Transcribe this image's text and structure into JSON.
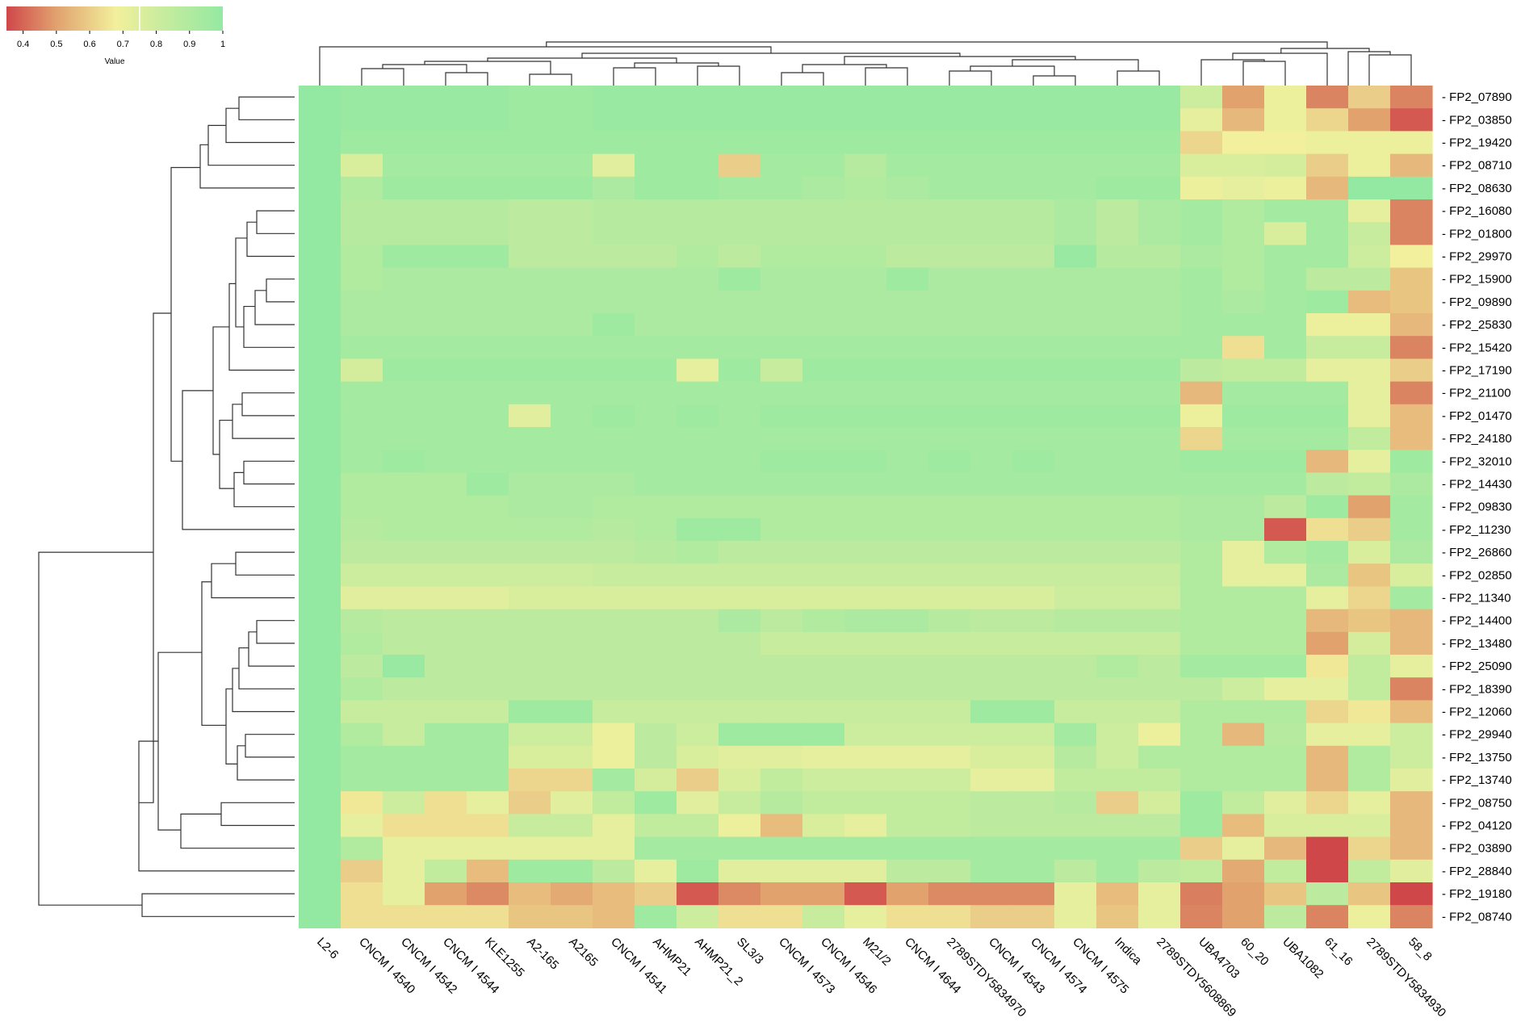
{
  "chart_data": {
    "type": "heatmap",
    "title": "",
    "colorbar": {
      "label": "Value",
      "ticks": [
        "0.4",
        "0.5",
        "0.6",
        "0.7",
        "0.8",
        "0.9",
        "1"
      ],
      "range": [
        0.35,
        1.0
      ],
      "stops": [
        {
          "v": 0.35,
          "color": "#d0474a"
        },
        {
          "v": 0.5,
          "color": "#e1a26e"
        },
        {
          "v": 0.68,
          "color": "#f2f09c"
        },
        {
          "v": 0.82,
          "color": "#c7ec9e"
        },
        {
          "v": 1.0,
          "color": "#94e9a2"
        }
      ]
    },
    "columns": [
      "L2-6",
      "CNCM I 4540",
      "CNCM I 4542",
      "CNCM I 4544",
      "KLE1255",
      "A2-165",
      "A2165",
      "CNCM I 4541",
      "AHMP21",
      "AHMP21_2",
      "SL3/3",
      "CNCM I 4573",
      "CNCM I 4546",
      "M21/2",
      "CNCM I 4644",
      "2789STDY5834970",
      "CNCM I 4543",
      "CNCM I 4574",
      "CNCM I 4575",
      "Indica",
      "2789STDY5608869",
      "UBA4703",
      "60_20",
      "UBA1082",
      "61_16",
      "2789STDY5834930",
      "58_8"
    ],
    "rows": [
      "FP2_07890",
      "FP2_03850",
      "FP2_19420",
      "FP2_08710",
      "FP2_08630",
      "FP2_16080",
      "FP2_01800",
      "FP2_29970",
      "FP2_15900",
      "FP2_09890",
      "FP2_25830",
      "FP2_15420",
      "FP2_17190",
      "FP2_21100",
      "FP2_01470",
      "FP2_24180",
      "FP2_32010",
      "FP2_14430",
      "FP2_09830",
      "FP2_11230",
      "FP2_26860",
      "FP2_02850",
      "FP2_11340",
      "FP2_14400",
      "FP2_13480",
      "FP2_25090",
      "FP2_18390",
      "FP2_12060",
      "FP2_29940",
      "FP2_13750",
      "FP2_13740",
      "FP2_08750",
      "FP2_04120",
      "FP2_03890",
      "FP2_28840",
      "FP2_19180",
      "FP2_08740"
    ],
    "values": [
      [
        1,
        0.98,
        0.98,
        0.98,
        0.98,
        0.96,
        0.96,
        0.98,
        0.98,
        0.98,
        0.98,
        0.98,
        0.98,
        0.98,
        0.98,
        0.98,
        0.98,
        0.98,
        0.98,
        0.98,
        0.98,
        0.8,
        0.5,
        0.7,
        0.45,
        0.6,
        0.45
      ],
      [
        1,
        0.98,
        0.98,
        0.98,
        0.98,
        0.96,
        0.96,
        0.98,
        0.98,
        0.98,
        0.98,
        0.98,
        0.98,
        0.98,
        0.98,
        0.98,
        0.98,
        0.98,
        0.98,
        0.98,
        0.98,
        0.72,
        0.55,
        0.7,
        0.62,
        0.5,
        0.38
      ],
      [
        1,
        0.96,
        0.96,
        0.96,
        0.96,
        0.96,
        0.96,
        0.96,
        0.96,
        0.96,
        0.96,
        0.96,
        0.96,
        0.96,
        0.96,
        0.96,
        0.96,
        0.96,
        0.96,
        0.96,
        0.96,
        0.62,
        0.68,
        0.68,
        0.7,
        0.7,
        0.7
      ],
      [
        1,
        0.76,
        0.94,
        0.94,
        0.94,
        0.94,
        0.94,
        0.74,
        0.96,
        0.96,
        0.6,
        0.94,
        0.94,
        0.88,
        0.94,
        0.94,
        0.94,
        0.94,
        0.94,
        0.94,
        0.94,
        0.76,
        0.76,
        0.78,
        0.6,
        0.7,
        0.55
      ],
      [
        1,
        0.9,
        0.96,
        0.96,
        0.96,
        0.96,
        0.96,
        0.92,
        0.96,
        0.96,
        0.94,
        0.94,
        0.92,
        0.9,
        0.92,
        0.94,
        0.94,
        0.94,
        0.94,
        0.96,
        0.96,
        0.7,
        0.72,
        0.7,
        0.55,
        1,
        1
      ],
      [
        1,
        0.88,
        0.88,
        0.88,
        0.88,
        0.86,
        0.86,
        0.88,
        0.88,
        0.88,
        0.88,
        0.88,
        0.88,
        0.88,
        0.88,
        0.88,
        0.88,
        0.88,
        0.92,
        0.86,
        0.92,
        0.94,
        0.9,
        0.94,
        0.94,
        0.72,
        0.45
      ],
      [
        1,
        0.88,
        0.88,
        0.88,
        0.88,
        0.86,
        0.86,
        0.88,
        0.88,
        0.88,
        0.88,
        0.88,
        0.88,
        0.88,
        0.88,
        0.88,
        0.88,
        0.88,
        0.92,
        0.86,
        0.92,
        0.94,
        0.9,
        0.76,
        0.94,
        0.82,
        0.45
      ],
      [
        1,
        0.9,
        0.96,
        0.96,
        0.96,
        0.86,
        0.86,
        0.86,
        0.86,
        0.9,
        0.86,
        0.9,
        0.9,
        0.9,
        0.86,
        0.86,
        0.86,
        0.86,
        0.98,
        0.88,
        0.88,
        0.92,
        0.9,
        0.94,
        0.94,
        0.8,
        0.68
      ],
      [
        1,
        0.9,
        0.92,
        0.92,
        0.92,
        0.92,
        0.92,
        0.92,
        0.92,
        0.92,
        0.96,
        0.92,
        0.92,
        0.92,
        0.96,
        0.92,
        0.92,
        0.92,
        0.92,
        0.92,
        0.92,
        0.94,
        0.9,
        0.94,
        0.86,
        0.86,
        0.58
      ],
      [
        1,
        0.92,
        0.92,
        0.92,
        0.92,
        0.92,
        0.92,
        0.92,
        0.92,
        0.92,
        0.92,
        0.92,
        0.92,
        0.92,
        0.92,
        0.92,
        0.92,
        0.92,
        0.92,
        0.92,
        0.92,
        0.94,
        0.92,
        0.94,
        0.96,
        0.56,
        0.58
      ],
      [
        1,
        0.92,
        0.92,
        0.92,
        0.92,
        0.92,
        0.92,
        0.96,
        0.92,
        0.92,
        0.92,
        0.92,
        0.92,
        0.92,
        0.92,
        0.92,
        0.92,
        0.92,
        0.92,
        0.92,
        0.92,
        0.94,
        0.94,
        0.94,
        0.7,
        0.7,
        0.55
      ],
      [
        1,
        0.94,
        0.94,
        0.94,
        0.94,
        0.94,
        0.94,
        0.94,
        0.94,
        0.94,
        0.94,
        0.94,
        0.94,
        0.94,
        0.94,
        0.94,
        0.94,
        0.94,
        0.94,
        0.94,
        0.94,
        0.94,
        0.64,
        0.94,
        0.82,
        0.82,
        0.45
      ],
      [
        1,
        0.78,
        0.96,
        0.96,
        0.96,
        0.96,
        0.96,
        0.96,
        0.96,
        0.72,
        0.96,
        0.82,
        0.96,
        0.96,
        0.96,
        0.96,
        0.96,
        0.96,
        0.96,
        0.96,
        0.96,
        0.86,
        0.84,
        0.84,
        0.72,
        0.72,
        0.6
      ],
      [
        1,
        0.94,
        0.94,
        0.94,
        0.94,
        0.94,
        0.94,
        0.94,
        0.94,
        0.94,
        0.94,
        0.94,
        0.94,
        0.94,
        0.94,
        0.94,
        0.94,
        0.94,
        0.94,
        0.94,
        0.94,
        0.55,
        0.94,
        0.94,
        0.94,
        0.72,
        0.45
      ],
      [
        1,
        0.94,
        0.94,
        0.94,
        0.94,
        0.74,
        0.94,
        0.96,
        0.94,
        0.96,
        0.94,
        0.96,
        0.96,
        0.96,
        0.96,
        0.96,
        0.96,
        0.96,
        0.96,
        0.96,
        0.96,
        0.7,
        0.96,
        0.96,
        0.96,
        0.72,
        0.56
      ],
      [
        1,
        0.94,
        0.94,
        0.94,
        0.94,
        0.94,
        0.94,
        0.94,
        0.94,
        0.94,
        0.94,
        0.94,
        0.94,
        0.94,
        0.94,
        0.94,
        0.94,
        0.94,
        0.94,
        0.94,
        0.94,
        0.62,
        0.94,
        0.94,
        0.94,
        0.84,
        0.56
      ],
      [
        1,
        0.94,
        0.96,
        0.94,
        0.94,
        0.94,
        0.94,
        0.94,
        0.94,
        0.94,
        0.94,
        0.96,
        0.96,
        0.96,
        0.94,
        0.96,
        0.94,
        0.96,
        0.94,
        0.94,
        0.94,
        0.96,
        0.96,
        0.96,
        0.55,
        0.72,
        0.96
      ],
      [
        1,
        0.9,
        0.9,
        0.9,
        0.96,
        0.92,
        0.92,
        0.92,
        0.94,
        0.94,
        0.94,
        0.94,
        0.94,
        0.94,
        0.94,
        0.94,
        0.94,
        0.94,
        0.94,
        0.94,
        0.94,
        0.94,
        0.94,
        0.94,
        0.86,
        0.84,
        0.92
      ],
      [
        1,
        0.9,
        0.9,
        0.9,
        0.9,
        0.92,
        0.92,
        0.9,
        0.9,
        0.9,
        0.9,
        0.9,
        0.9,
        0.9,
        0.9,
        0.9,
        0.9,
        0.9,
        0.9,
        0.9,
        0.9,
        0.92,
        0.92,
        0.86,
        0.96,
        0.5,
        0.94
      ],
      [
        1,
        0.88,
        0.9,
        0.9,
        0.9,
        0.9,
        0.9,
        0.88,
        0.9,
        0.96,
        0.96,
        0.9,
        0.9,
        0.9,
        0.9,
        0.9,
        0.9,
        0.9,
        0.9,
        0.9,
        0.9,
        0.92,
        0.92,
        0.38,
        0.64,
        0.6,
        0.94
      ],
      [
        1,
        0.86,
        0.86,
        0.86,
        0.86,
        0.86,
        0.86,
        0.86,
        0.88,
        0.9,
        0.86,
        0.86,
        0.86,
        0.86,
        0.86,
        0.86,
        0.86,
        0.86,
        0.86,
        0.86,
        0.86,
        0.9,
        0.72,
        0.9,
        0.94,
        0.76,
        0.92
      ],
      [
        1,
        0.8,
        0.8,
        0.8,
        0.8,
        0.8,
        0.8,
        0.82,
        0.82,
        0.82,
        0.82,
        0.82,
        0.82,
        0.82,
        0.82,
        0.82,
        0.82,
        0.82,
        0.82,
        0.82,
        0.82,
        0.9,
        0.72,
        0.72,
        0.92,
        0.58,
        0.76
      ],
      [
        1,
        0.74,
        0.74,
        0.74,
        0.74,
        0.76,
        0.76,
        0.76,
        0.76,
        0.76,
        0.76,
        0.76,
        0.76,
        0.76,
        0.76,
        0.76,
        0.76,
        0.76,
        0.8,
        0.8,
        0.8,
        0.9,
        0.9,
        0.9,
        0.72,
        0.62,
        0.94
      ],
      [
        1,
        0.88,
        0.86,
        0.86,
        0.86,
        0.86,
        0.86,
        0.86,
        0.86,
        0.86,
        0.92,
        0.86,
        0.9,
        0.92,
        0.92,
        0.88,
        0.86,
        0.86,
        0.88,
        0.88,
        0.88,
        0.9,
        0.9,
        0.9,
        0.55,
        0.58,
        0.55
      ],
      [
        1,
        0.9,
        0.86,
        0.86,
        0.86,
        0.86,
        0.86,
        0.86,
        0.86,
        0.86,
        0.86,
        0.82,
        0.82,
        0.82,
        0.82,
        0.82,
        0.82,
        0.82,
        0.82,
        0.82,
        0.82,
        0.9,
        0.9,
        0.9,
        0.5,
        0.78,
        0.55
      ],
      [
        1,
        0.86,
        0.98,
        0.86,
        0.86,
        0.86,
        0.86,
        0.86,
        0.86,
        0.86,
        0.86,
        0.86,
        0.86,
        0.86,
        0.86,
        0.86,
        0.86,
        0.86,
        0.86,
        0.9,
        0.86,
        0.94,
        0.94,
        0.94,
        0.66,
        0.84,
        0.72
      ],
      [
        1,
        0.9,
        0.86,
        0.86,
        0.86,
        0.86,
        0.86,
        0.86,
        0.86,
        0.86,
        0.86,
        0.86,
        0.86,
        0.86,
        0.86,
        0.86,
        0.86,
        0.86,
        0.86,
        0.86,
        0.86,
        0.86,
        0.8,
        0.72,
        0.72,
        0.84,
        0.45
      ],
      [
        1,
        0.82,
        0.82,
        0.82,
        0.82,
        0.96,
        0.96,
        0.82,
        0.82,
        0.82,
        0.82,
        0.82,
        0.82,
        0.82,
        0.82,
        0.82,
        0.96,
        0.96,
        0.82,
        0.82,
        0.82,
        0.9,
        0.9,
        0.9,
        0.62,
        0.66,
        0.56
      ],
      [
        1,
        0.9,
        0.82,
        0.94,
        0.94,
        0.8,
        0.8,
        0.7,
        0.86,
        0.8,
        0.96,
        0.96,
        0.96,
        0.8,
        0.8,
        0.8,
        0.8,
        0.8,
        0.94,
        0.8,
        0.7,
        0.9,
        0.55,
        0.88,
        0.72,
        0.72,
        0.8
      ],
      [
        1,
        0.94,
        0.94,
        0.94,
        0.94,
        0.76,
        0.76,
        0.7,
        0.86,
        0.76,
        0.74,
        0.74,
        0.72,
        0.72,
        0.72,
        0.72,
        0.76,
        0.76,
        0.88,
        0.8,
        0.9,
        0.9,
        0.9,
        0.9,
        0.55,
        0.9,
        0.8
      ],
      [
        1,
        0.94,
        0.94,
        0.94,
        0.94,
        0.62,
        0.62,
        0.94,
        0.78,
        0.6,
        0.76,
        0.84,
        0.8,
        0.8,
        0.8,
        0.8,
        0.72,
        0.72,
        0.84,
        0.84,
        0.84,
        0.9,
        0.9,
        0.9,
        0.55,
        0.9,
        0.74
      ],
      [
        1,
        0.66,
        0.8,
        0.64,
        0.72,
        0.6,
        0.74,
        0.84,
        0.96,
        0.74,
        0.82,
        0.88,
        0.84,
        0.84,
        0.84,
        0.84,
        0.86,
        0.86,
        0.88,
        0.6,
        0.78,
        0.96,
        0.84,
        0.74,
        0.62,
        0.72,
        0.55
      ],
      [
        1,
        0.72,
        0.64,
        0.64,
        0.64,
        0.82,
        0.82,
        0.72,
        0.84,
        0.84,
        0.7,
        0.56,
        0.76,
        0.72,
        0.84,
        0.84,
        0.86,
        0.86,
        0.86,
        0.86,
        0.86,
        0.96,
        0.56,
        0.76,
        0.76,
        0.76,
        0.55
      ],
      [
        1,
        0.9,
        0.72,
        0.72,
        0.72,
        0.72,
        0.72,
        0.72,
        0.94,
        0.94,
        0.94,
        0.94,
        0.94,
        0.94,
        0.94,
        0.94,
        0.94,
        0.94,
        0.94,
        0.94,
        0.94,
        0.6,
        0.72,
        0.55,
        0.35,
        0.62,
        0.55
      ],
      [
        1,
        0.6,
        0.72,
        0.84,
        0.56,
        0.96,
        0.96,
        0.86,
        0.72,
        0.96,
        0.74,
        0.74,
        0.74,
        0.74,
        0.86,
        0.86,
        0.94,
        0.94,
        0.86,
        0.94,
        0.86,
        0.84,
        0.52,
        0.84,
        0.35,
        0.84,
        0.74
      ],
      [
        1,
        0.64,
        0.72,
        0.5,
        0.46,
        0.56,
        0.52,
        0.56,
        0.6,
        0.38,
        0.46,
        0.5,
        0.5,
        0.38,
        0.5,
        0.46,
        0.46,
        0.46,
        0.72,
        0.56,
        0.72,
        0.44,
        0.5,
        0.58,
        0.86,
        0.58,
        0.35
      ],
      [
        1,
        0.64,
        0.64,
        0.64,
        0.64,
        0.58,
        0.58,
        0.56,
        0.96,
        0.8,
        0.64,
        0.64,
        0.82,
        0.72,
        0.64,
        0.64,
        0.6,
        0.6,
        0.72,
        0.58,
        0.72,
        0.45,
        0.5,
        0.86,
        0.45,
        0.7,
        0.45
      ]
    ]
  }
}
